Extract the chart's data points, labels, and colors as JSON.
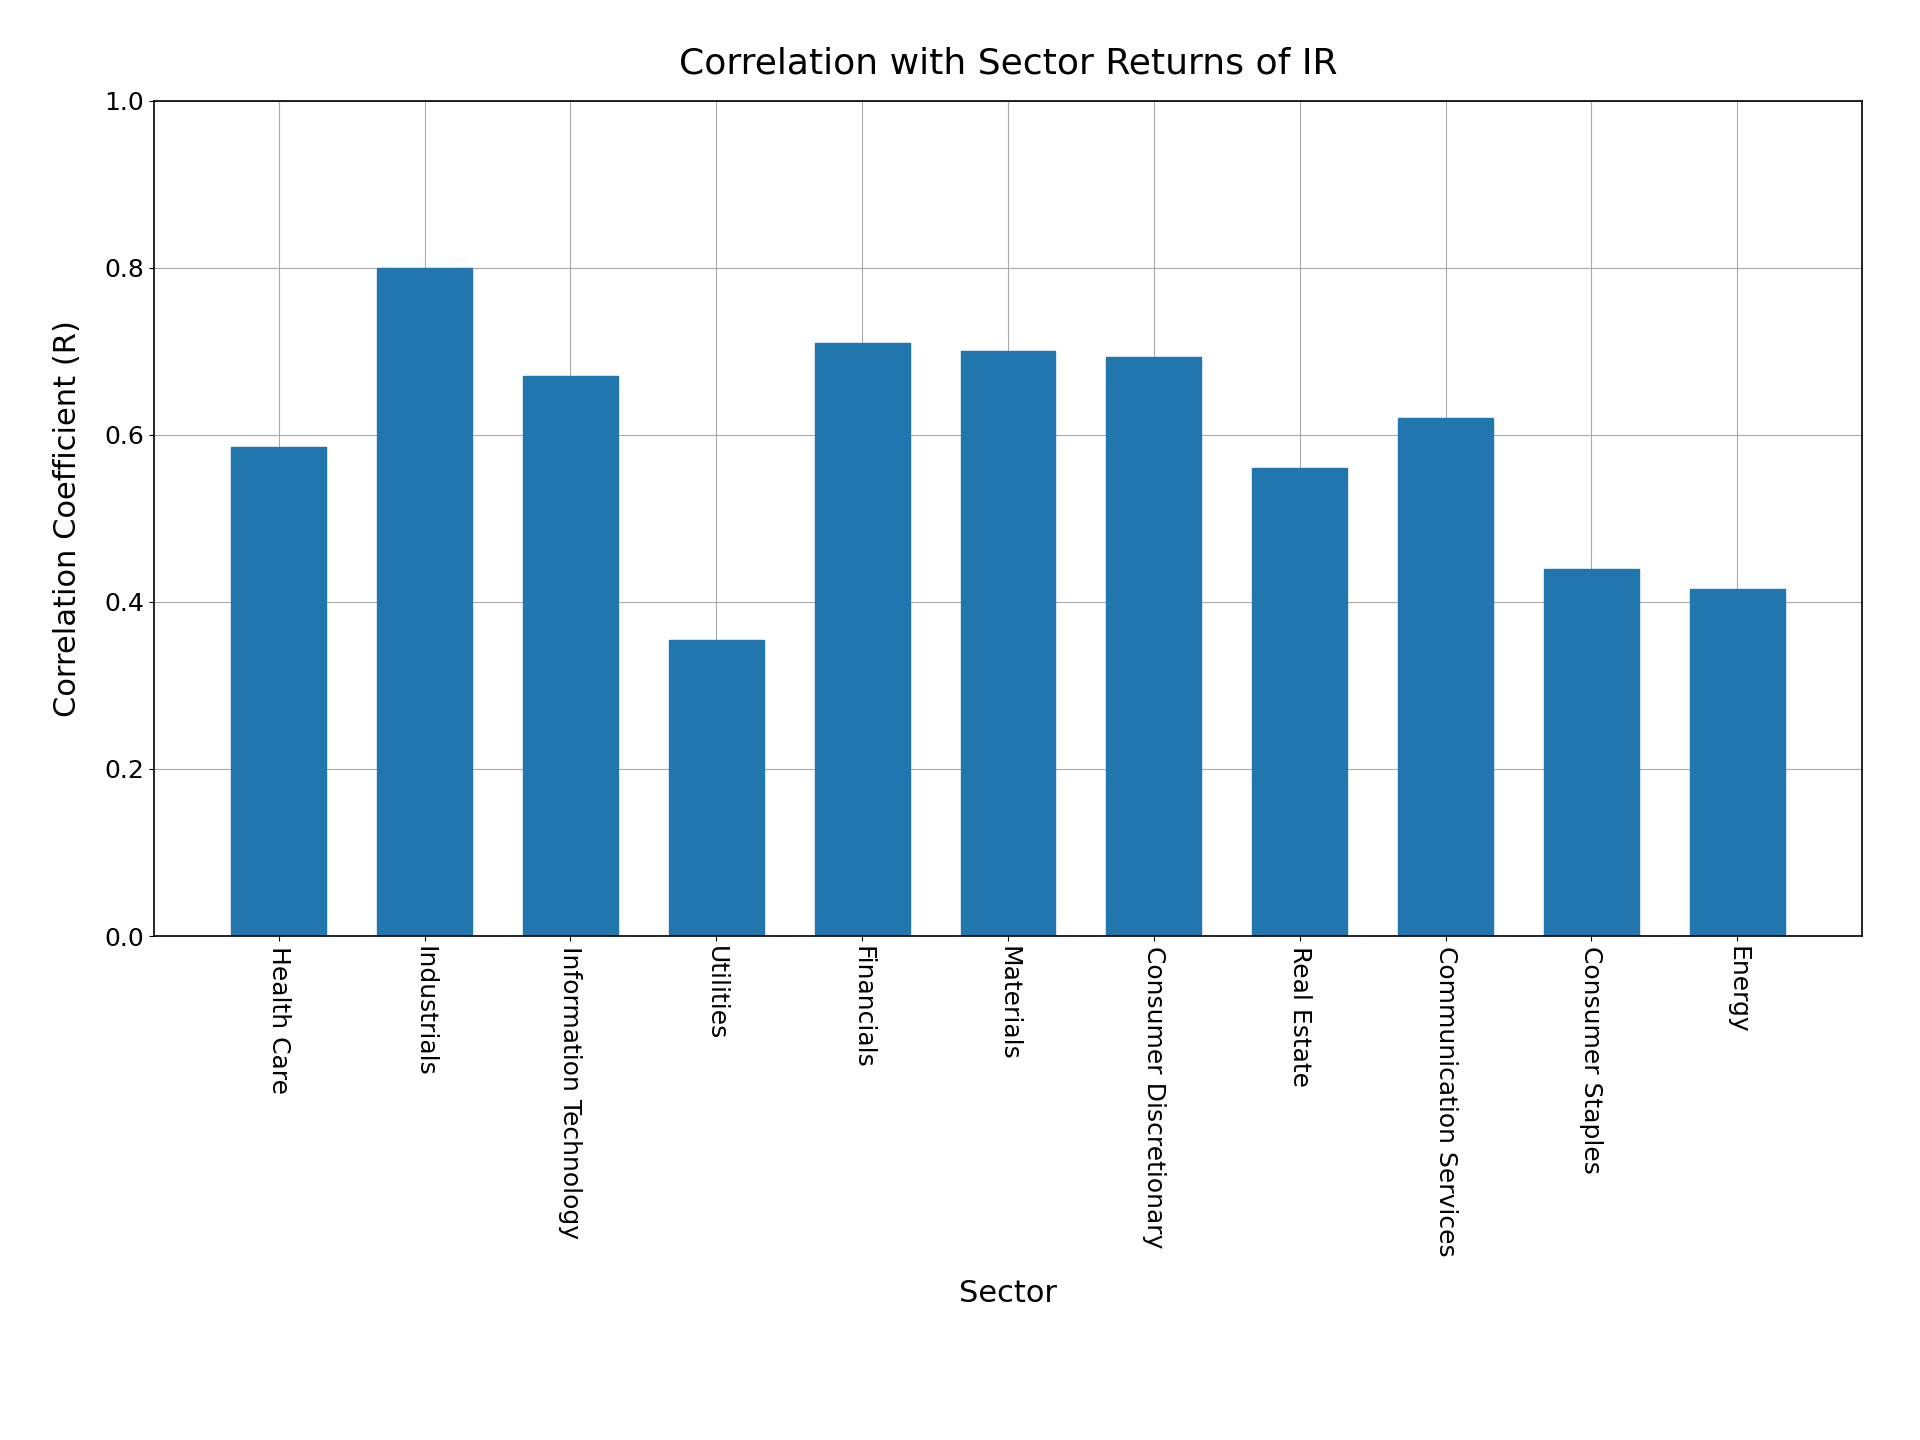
{
  "title": "Correlation with Sector Returns of IR",
  "xlabel": "Sector",
  "ylabel": "Correlation Coefficient (R)",
  "categories": [
    "Health Care",
    "Industrials",
    "Information Technology",
    "Utilities",
    "Financials",
    "Materials",
    "Consumer Discretionary",
    "Real Estate",
    "Communication Services",
    "Consumer Staples",
    "Energy"
  ],
  "values": [
    0.585,
    0.8,
    0.67,
    0.355,
    0.71,
    0.7,
    0.693,
    0.56,
    0.62,
    0.44,
    0.415
  ],
  "bar_color": "#2176ae",
  "ylim": [
    0.0,
    1.0
  ],
  "yticks": [
    0.0,
    0.2,
    0.4,
    0.6,
    0.8,
    1.0
  ],
  "title_fontsize": 26,
  "label_fontsize": 22,
  "tick_fontsize": 18,
  "background_color": "#ffffff",
  "grid_color": "#aaaaaa",
  "bar_width": 0.65
}
